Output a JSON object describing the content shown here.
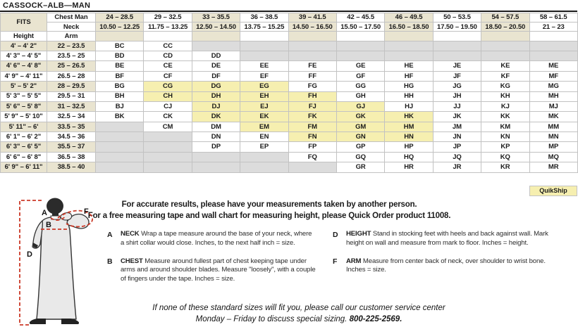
{
  "title": "CASSOCK–ALB—MAN",
  "table": {
    "fits_label": "FITS",
    "chest_label": "Chest Man",
    "neck_label": "Neck",
    "height_label": "Height",
    "arm_label": "Arm",
    "quikship_label": "QuikShip",
    "columns": [
      {
        "chest": "24 – 28.5",
        "neck": "10.50 – 12.25"
      },
      {
        "chest": "29 – 32.5",
        "neck": "11.75 – 13.25"
      },
      {
        "chest": "33 – 35.5",
        "neck": "12.50 – 14.50"
      },
      {
        "chest": "36 – 38.5",
        "neck": "13.75 – 15.25"
      },
      {
        "chest": "39 – 41.5",
        "neck": "14.50 – 16.50"
      },
      {
        "chest": "42 – 45.5",
        "neck": "15.50 – 17.50"
      },
      {
        "chest": "46 – 49.5",
        "neck": "16.50 – 18.50"
      },
      {
        "chest": "50 – 53.5",
        "neck": "17.50 – 19.50"
      },
      {
        "chest": "54 – 57.5",
        "neck": "18.50 – 20.50"
      },
      {
        "chest": "58 – 61.5",
        "neck": "21 – 23"
      }
    ],
    "rows": [
      {
        "height": "4' – 4' 2\"",
        "arm": "22 – 23.5",
        "cells": [
          {
            "c": "BC",
            "s": "n"
          },
          {
            "c": "CC",
            "s": "n"
          },
          {
            "c": "",
            "s": "g"
          },
          {
            "c": "",
            "s": "g"
          },
          {
            "c": "",
            "s": "g"
          },
          {
            "c": "",
            "s": "g"
          },
          {
            "c": "",
            "s": "g"
          },
          {
            "c": "",
            "s": "g"
          },
          {
            "c": "",
            "s": "g"
          },
          {
            "c": "",
            "s": "g"
          }
        ]
      },
      {
        "height": "4' 3\" – 4' 5\"",
        "arm": "23.5 – 25",
        "cells": [
          {
            "c": "BD",
            "s": "n"
          },
          {
            "c": "CD",
            "s": "n"
          },
          {
            "c": "DD",
            "s": "n"
          },
          {
            "c": "",
            "s": "g"
          },
          {
            "c": "",
            "s": "g"
          },
          {
            "c": "",
            "s": "g"
          },
          {
            "c": "",
            "s": "g"
          },
          {
            "c": "",
            "s": "g"
          },
          {
            "c": "",
            "s": "g"
          },
          {
            "c": "",
            "s": "g"
          }
        ]
      },
      {
        "height": "4' 6\" – 4' 8\"",
        "arm": "25 – 26.5",
        "cells": [
          {
            "c": "BE",
            "s": "n"
          },
          {
            "c": "CE",
            "s": "n"
          },
          {
            "c": "DE",
            "s": "n"
          },
          {
            "c": "EE",
            "s": "n"
          },
          {
            "c": "FE",
            "s": "n"
          },
          {
            "c": "GE",
            "s": "n"
          },
          {
            "c": "HE",
            "s": "n"
          },
          {
            "c": "JE",
            "s": "n"
          },
          {
            "c": "KE",
            "s": "n"
          },
          {
            "c": "ME",
            "s": "n"
          }
        ]
      },
      {
        "height": "4' 9\" – 4' 11\"",
        "arm": "26.5 – 28",
        "cells": [
          {
            "c": "BF",
            "s": "n"
          },
          {
            "c": "CF",
            "s": "n"
          },
          {
            "c": "DF",
            "s": "n"
          },
          {
            "c": "EF",
            "s": "n"
          },
          {
            "c": "FF",
            "s": "n"
          },
          {
            "c": "GF",
            "s": "n"
          },
          {
            "c": "HF",
            "s": "n"
          },
          {
            "c": "JF",
            "s": "n"
          },
          {
            "c": "KF",
            "s": "n"
          },
          {
            "c": "MF",
            "s": "n"
          }
        ]
      },
      {
        "height": "5' – 5' 2\"",
        "arm": "28 – 29.5",
        "cells": [
          {
            "c": "BG",
            "s": "n"
          },
          {
            "c": "CG",
            "s": "y"
          },
          {
            "c": "DG",
            "s": "y"
          },
          {
            "c": "EG",
            "s": "y"
          },
          {
            "c": "FG",
            "s": "n"
          },
          {
            "c": "GG",
            "s": "n"
          },
          {
            "c": "HG",
            "s": "n"
          },
          {
            "c": "JG",
            "s": "n"
          },
          {
            "c": "KG",
            "s": "n"
          },
          {
            "c": "MG",
            "s": "n"
          }
        ]
      },
      {
        "height": "5' 3\" – 5' 5\"",
        "arm": "29.5 – 31",
        "cells": [
          {
            "c": "BH",
            "s": "n"
          },
          {
            "c": "CH",
            "s": "y"
          },
          {
            "c": "DH",
            "s": "y"
          },
          {
            "c": "EH",
            "s": "y"
          },
          {
            "c": "FH",
            "s": "y"
          },
          {
            "c": "GH",
            "s": "n"
          },
          {
            "c": "HH",
            "s": "n"
          },
          {
            "c": "JH",
            "s": "n"
          },
          {
            "c": "KH",
            "s": "n"
          },
          {
            "c": "MH",
            "s": "n"
          }
        ]
      },
      {
        "height": "5' 6\" – 5' 8\"",
        "arm": "31 – 32.5",
        "cells": [
          {
            "c": "BJ",
            "s": "n"
          },
          {
            "c": "CJ",
            "s": "n"
          },
          {
            "c": "DJ",
            "s": "y"
          },
          {
            "c": "EJ",
            "s": "y"
          },
          {
            "c": "FJ",
            "s": "y"
          },
          {
            "c": "GJ",
            "s": "y"
          },
          {
            "c": "HJ",
            "s": "n"
          },
          {
            "c": "JJ",
            "s": "n"
          },
          {
            "c": "KJ",
            "s": "n"
          },
          {
            "c": "MJ",
            "s": "n"
          }
        ]
      },
      {
        "height": "5' 9\" – 5' 10\"",
        "arm": "32.5 – 34",
        "cells": [
          {
            "c": "BK",
            "s": "n"
          },
          {
            "c": "CK",
            "s": "n"
          },
          {
            "c": "DK",
            "s": "y"
          },
          {
            "c": "EK",
            "s": "y"
          },
          {
            "c": "FK",
            "s": "y"
          },
          {
            "c": "GK",
            "s": "y"
          },
          {
            "c": "HK",
            "s": "y"
          },
          {
            "c": "JK",
            "s": "n"
          },
          {
            "c": "KK",
            "s": "n"
          },
          {
            "c": "MK",
            "s": "n"
          }
        ]
      },
      {
        "height": "5' 11\" – 6'",
        "arm": "33.5 – 35",
        "cells": [
          {
            "c": "",
            "s": "g"
          },
          {
            "c": "CM",
            "s": "n"
          },
          {
            "c": "DM",
            "s": "n"
          },
          {
            "c": "EM",
            "s": "y"
          },
          {
            "c": "FM",
            "s": "y"
          },
          {
            "c": "GM",
            "s": "y"
          },
          {
            "c": "HM",
            "s": "y"
          },
          {
            "c": "JM",
            "s": "n"
          },
          {
            "c": "KM",
            "s": "n"
          },
          {
            "c": "MM",
            "s": "n"
          }
        ]
      },
      {
        "height": "6' 1\" – 6' 2\"",
        "arm": "34.5 – 36",
        "cells": [
          {
            "c": "",
            "s": "g"
          },
          {
            "c": "",
            "s": "g"
          },
          {
            "c": "DN",
            "s": "n"
          },
          {
            "c": "EN",
            "s": "n"
          },
          {
            "c": "FN",
            "s": "y"
          },
          {
            "c": "GN",
            "s": "y"
          },
          {
            "c": "HN",
            "s": "y"
          },
          {
            "c": "JN",
            "s": "n"
          },
          {
            "c": "KN",
            "s": "n"
          },
          {
            "c": "MN",
            "s": "n"
          }
        ]
      },
      {
        "height": "6' 3\" – 6' 5\"",
        "arm": "35.5 – 37",
        "cells": [
          {
            "c": "",
            "s": "g"
          },
          {
            "c": "",
            "s": "g"
          },
          {
            "c": "DP",
            "s": "n"
          },
          {
            "c": "EP",
            "s": "n"
          },
          {
            "c": "FP",
            "s": "n"
          },
          {
            "c": "GP",
            "s": "n"
          },
          {
            "c": "HP",
            "s": "n"
          },
          {
            "c": "JP",
            "s": "n"
          },
          {
            "c": "KP",
            "s": "n"
          },
          {
            "c": "MP",
            "s": "n"
          }
        ]
      },
      {
        "height": "6' 6\" – 6' 8\"",
        "arm": "36.5 – 38",
        "cells": [
          {
            "c": "",
            "s": "g"
          },
          {
            "c": "",
            "s": "g"
          },
          {
            "c": "",
            "s": "g"
          },
          {
            "c": "",
            "s": "g"
          },
          {
            "c": "FQ",
            "s": "n"
          },
          {
            "c": "GQ",
            "s": "n"
          },
          {
            "c": "HQ",
            "s": "n"
          },
          {
            "c": "JQ",
            "s": "n"
          },
          {
            "c": "KQ",
            "s": "n"
          },
          {
            "c": "MQ",
            "s": "n"
          }
        ]
      },
      {
        "height": "6' 9\" – 6' 11\"",
        "arm": "38.5 – 40",
        "cells": [
          {
            "c": "",
            "s": "g"
          },
          {
            "c": "",
            "s": "g"
          },
          {
            "c": "",
            "s": "g"
          },
          {
            "c": "",
            "s": "g"
          },
          {
            "c": "",
            "s": "g"
          },
          {
            "c": "GR",
            "s": "n"
          },
          {
            "c": "HR",
            "s": "n"
          },
          {
            "c": "JR",
            "s": "n"
          },
          {
            "c": "KR",
            "s": "n"
          },
          {
            "c": "MR",
            "s": "n"
          }
        ]
      }
    ]
  },
  "notes": {
    "line1": "For accurate results, please have your measurements taken by another person.",
    "line2": "For a free measuring tape and wall chart for measuring height, please Quick Order product 11008."
  },
  "instructions": [
    {
      "letter": "A",
      "term": "NECK",
      "text": "Wrap a tape measure around the base of your neck, where a shirt collar would close. Inches, to the next half inch = size."
    },
    {
      "letter": "B",
      "term": "CHEST",
      "text": "Measure around fullest part of chest keeping tape under arms and around shoulder blades. Measure \"loosely\", with a couple of fingers under the tape. Inches = size."
    },
    {
      "letter": "D",
      "term": "HEIGHT",
      "text": "Stand in stocking feet with heels and back against wall. Mark height on wall and measure from mark to floor. Inches = height."
    },
    {
      "letter": "F",
      "term": "ARM",
      "text": "Measure from center back of neck, over shoulder to wrist bone. Inches = size."
    }
  ],
  "footer": {
    "line1": "If none of these standard sizes will fit you, please call our customer service center",
    "line2_prefix": "Monday – Friday to discuss special sizing. ",
    "phone": "800-225-2569."
  },
  "diagram": {
    "labels": [
      "A",
      "B",
      "D",
      "F"
    ]
  },
  "colors": {
    "beige": "#e9e4d0",
    "yellow": "#f6efb0",
    "gray": "#dcdcdc",
    "accent_red": "#cb3927"
  }
}
